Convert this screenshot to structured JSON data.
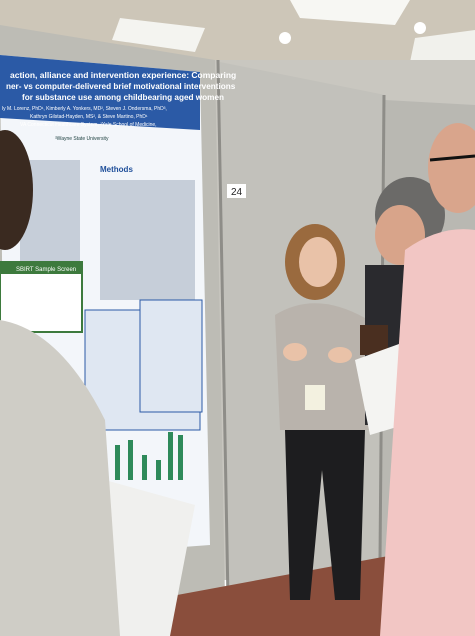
{
  "poster": {
    "title_lines": [
      "action, alliance and intervention experience: Comparing",
      "ner- vs computer-delivered brief motivational interventions",
      "for substance use among childbearing aged women"
    ],
    "authors": [
      "ly M. Lorenz, PhD¹, Kimberly A. Yonkers, MD², Steven J. Ondersma, PhD³,",
      "Kathryn Gilstad-Hayden, MS², & Steve Martino, PhD¹"
    ],
    "affiliations": [
      "VA Connecticut Healthcare System, ²Yale School of Medicine,",
      "³Wayne State University"
    ],
    "section_heading": "Methods",
    "sample_screen_label": "SBIRT Sample Screen"
  },
  "board_number": "24"
}
